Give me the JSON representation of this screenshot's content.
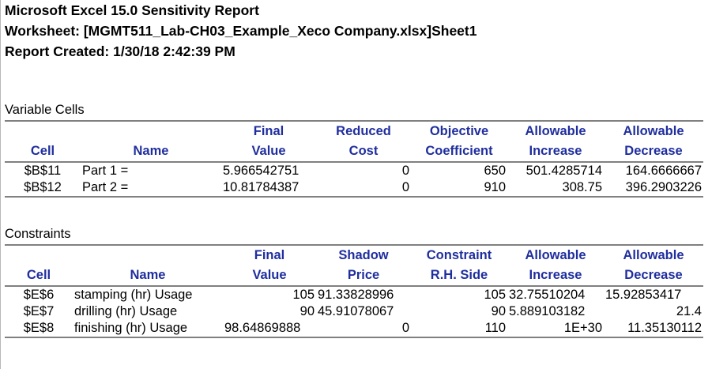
{
  "report": {
    "title": "Microsoft Excel 15.0 Sensitivity Report",
    "worksheet": "Worksheet: [MGMT511_Lab-CH03_Example_Xeco Company.xlsx]Sheet1",
    "created": "Report Created: 1/30/18 2:42:39 PM"
  },
  "variable_cells": {
    "section_label": "Variable Cells",
    "headers": {
      "row1": [
        "",
        "",
        "Final",
        "Reduced",
        "Objective",
        "Allowable",
        "Allowable"
      ],
      "row2": [
        "Cell",
        "Name",
        "Value",
        "Cost",
        "Coefficient",
        "Increase",
        "Decrease"
      ]
    },
    "rows": [
      [
        "$B$11",
        "Part 1 =",
        "5.966542751",
        "0",
        "650",
        "501.4285714",
        "164.6666667"
      ],
      [
        "$B$12",
        "Part 2 =",
        "10.81784387",
        "0",
        "910",
        "308.75",
        "396.2903226"
      ]
    ]
  },
  "constraints": {
    "section_label": "Constraints",
    "headers": {
      "row1": [
        "",
        "",
        "Final",
        "Shadow",
        "Constraint",
        "Allowable",
        "Allowable"
      ],
      "row2": [
        "Cell",
        "Name",
        "Value",
        "Price",
        "R.H. Side",
        "Increase",
        "Decrease"
      ]
    },
    "rows": [
      [
        "$E$6",
        "stamping (hr) Usage",
        "105",
        "91.33828996",
        "105",
        "32.75510204",
        "15.92853417"
      ],
      [
        "$E$7",
        "drilling (hr) Usage",
        "90",
        "45.91078067",
        "90",
        "5.889103182",
        "21.4"
      ],
      [
        "$E$8",
        "finishing (hr) Usage",
        "98.64869888",
        "0",
        "110",
        "1E+30",
        "11.35130112"
      ]
    ]
  }
}
